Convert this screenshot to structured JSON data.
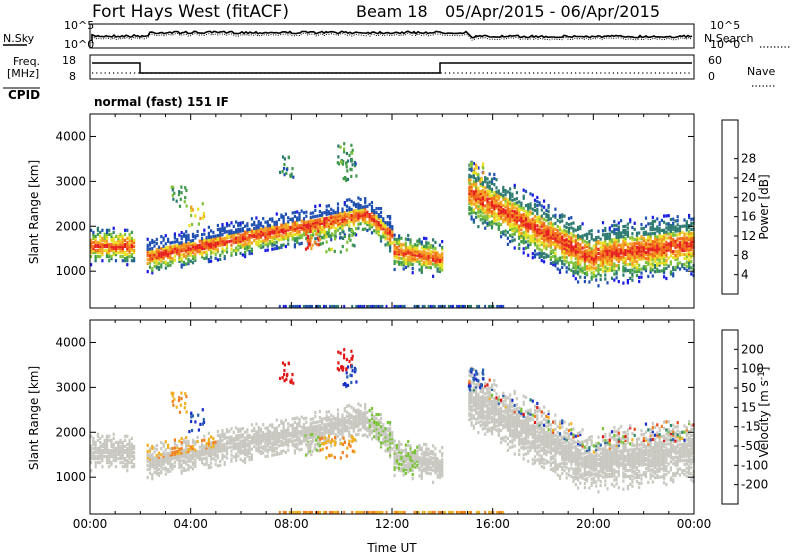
{
  "header": {
    "title": "Fort Hays West (fitACF)",
    "beam": "Beam 18",
    "dates": "05/Apr/2015 - 06/Apr/2015"
  },
  "strips": {
    "nsky_label": "N.Sky",
    "nsearch_label": "N.Search",
    "freq_label_1": "Freq.",
    "freq_label_2": "[MHz]",
    "nave_label": "Nave",
    "cpid_label": "CPID",
    "cpid_value": "normal (fast) 151 IF",
    "noise_ticks_left": [
      "10^5",
      "10^0"
    ],
    "noise_ticks_right": [
      "10^5",
      "10^0"
    ],
    "freq_ticks": [
      "18",
      "8"
    ],
    "nave_ticks": [
      "60",
      "0"
    ]
  },
  "chart_data": [
    {
      "type": "heatmap",
      "name": "power",
      "ylabel": "Slant Range [km]",
      "yticks": [
        "4000",
        "3000",
        "2000",
        "1000"
      ],
      "xticks": [
        "00:00",
        "04:00",
        "08:00",
        "12:00",
        "16:00",
        "20:00",
        "00:00"
      ],
      "xlim": [
        0,
        24
      ],
      "ylim": [
        180,
        4500
      ],
      "colorbar": {
        "label": "Power [dB]",
        "ticks": [
          "4",
          "8",
          "12",
          "16",
          "20",
          "24",
          "28"
        ],
        "colors": [
          "#1a1ae6",
          "#1f4fb0",
          "#2d7a70",
          "#3f9a4a",
          "#7fc23a",
          "#e8e020",
          "#f4a020",
          "#f06a18",
          "#e61e1e"
        ]
      }
    },
    {
      "type": "heatmap",
      "name": "velocity",
      "ylabel": "Slant Range [km]",
      "xlabel": "Time UT",
      "yticks": [
        "4000",
        "3000",
        "2000",
        "1000"
      ],
      "xticks": [
        "00:00",
        "04:00",
        "08:00",
        "12:00",
        "16:00",
        "20:00",
        "00:00"
      ],
      "xlim": [
        0,
        24
      ],
      "ylim": [
        180,
        4500
      ],
      "colorbar": {
        "label": "Velocity [m s-1]",
        "ticks": [
          "200",
          "100",
          "50",
          "15",
          "-15",
          "-50",
          "-100",
          "-200"
        ],
        "colors": [
          "#1a30c8",
          "#2860b0",
          "#2e8a6a",
          "#7ac23a",
          "#c8c8c0",
          "#f0b020",
          "#f08020",
          "#e84a18",
          "#e01818"
        ]
      }
    }
  ]
}
